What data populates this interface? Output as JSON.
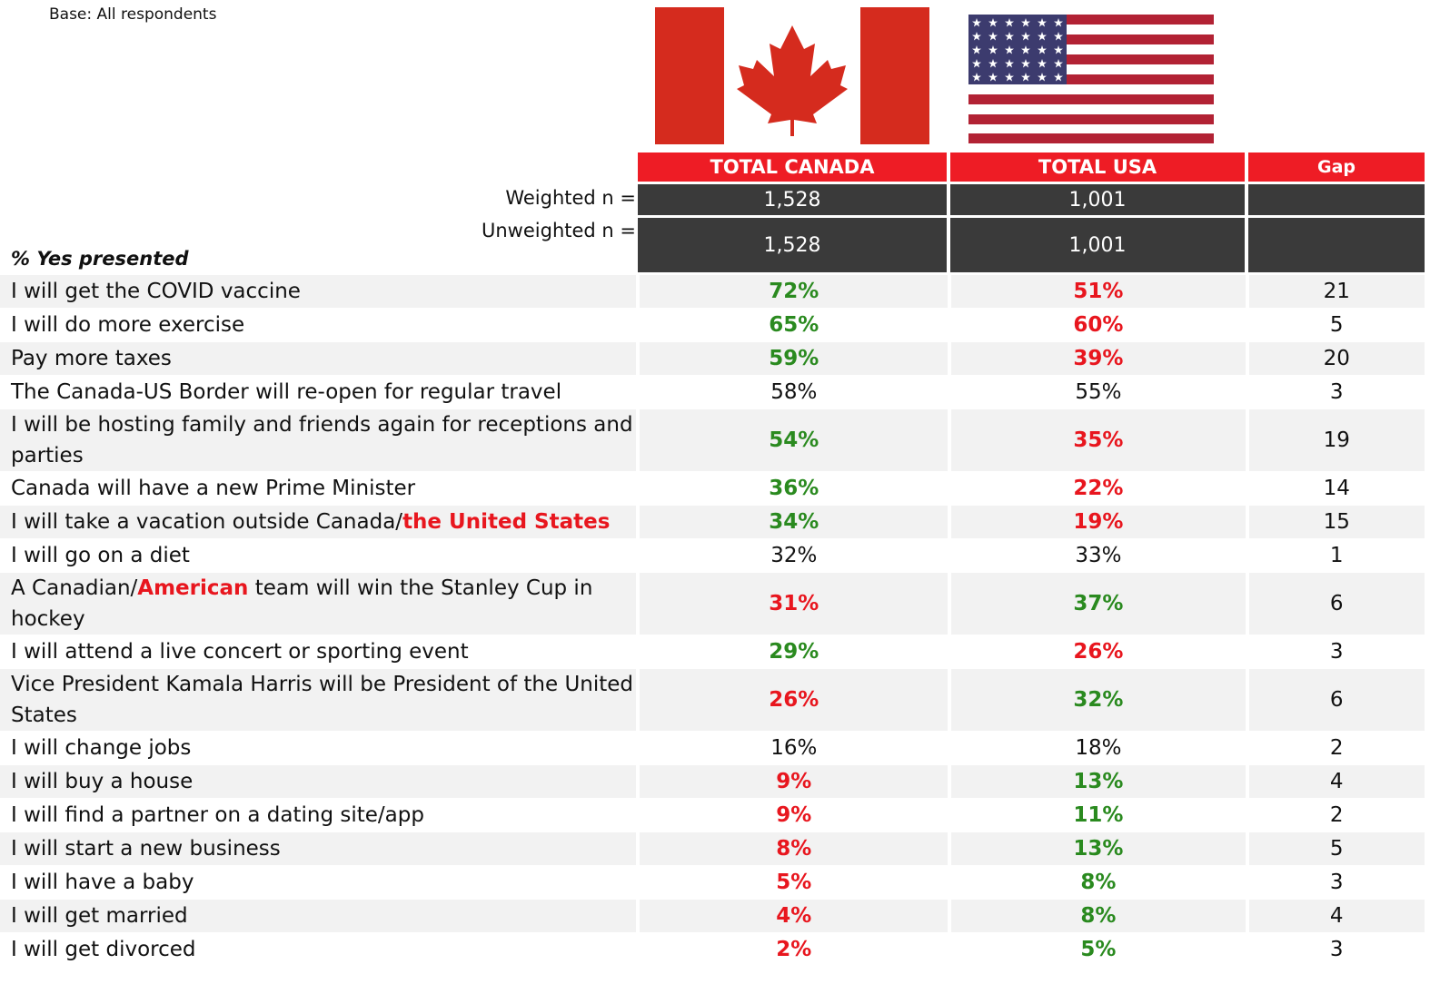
{
  "base": "Base: All respondents",
  "header": {
    "columns": [
      "TOTAL CANADA",
      "TOTAL USA",
      "Gap"
    ],
    "weighted_label": "Weighted n =",
    "weighted": [
      "1,528",
      "1,001"
    ],
    "unweighted_label": "Unweighted n =",
    "unweighted": [
      "1,528",
      "1,001"
    ],
    "section": "% Yes presented"
  },
  "colors": {
    "green": "#2a8a1f",
    "red": "#e8161e",
    "black": "#111111"
  },
  "rows": [
    {
      "label": [
        {
          "text": "I will get the COVID vaccine"
        }
      ],
      "canada": "72%",
      "canada_color": "green",
      "usa": "51%",
      "usa_color": "red",
      "gap": "21"
    },
    {
      "label": [
        {
          "text": "I will do more exercise"
        }
      ],
      "canada": "65%",
      "canada_color": "green",
      "usa": "60%",
      "usa_color": "red",
      "gap": "5"
    },
    {
      "label": [
        {
          "text": "Pay more taxes"
        }
      ],
      "canada": "59%",
      "canada_color": "green",
      "usa": "39%",
      "usa_color": "red",
      "gap": "20"
    },
    {
      "label": [
        {
          "text": "The Canada-US Border will re-open for regular travel"
        }
      ],
      "canada": "58%",
      "canada_color": "black",
      "usa": "55%",
      "usa_color": "black",
      "gap": "3"
    },
    {
      "label": [
        {
          "text": "I will be hosting family and friends again for receptions and parties"
        }
      ],
      "canada": "54%",
      "canada_color": "green",
      "usa": "35%",
      "usa_color": "red",
      "gap": "19"
    },
    {
      "label": [
        {
          "text": "Canada will have a new Prime Minister"
        }
      ],
      "canada": "36%",
      "canada_color": "green",
      "usa": "22%",
      "usa_color": "red",
      "gap": "14"
    },
    {
      "label": [
        {
          "text": "I will take a vacation outside Canada/"
        },
        {
          "text": "the United States",
          "highlight": true
        }
      ],
      "canada": "34%",
      "canada_color": "green",
      "usa": "19%",
      "usa_color": "red",
      "gap": "15"
    },
    {
      "label": [
        {
          "text": "I will go on a diet"
        }
      ],
      "canada": "32%",
      "canada_color": "black",
      "usa": "33%",
      "usa_color": "black",
      "gap": "1"
    },
    {
      "label": [
        {
          "text": "A Canadian/"
        },
        {
          "text": "American",
          "highlight": true
        },
        {
          "text": " team will win the Stanley Cup in hockey"
        }
      ],
      "canada": "31%",
      "canada_color": "red",
      "usa": "37%",
      "usa_color": "green",
      "gap": "6"
    },
    {
      "label": [
        {
          "text": "I will attend a live concert or sporting event"
        }
      ],
      "canada": "29%",
      "canada_color": "green",
      "usa": "26%",
      "usa_color": "red",
      "gap": "3"
    },
    {
      "label": [
        {
          "text": "Vice President Kamala Harris will be President of the United States"
        }
      ],
      "canada": "26%",
      "canada_color": "red",
      "usa": "32%",
      "usa_color": "green",
      "gap": "6"
    },
    {
      "label": [
        {
          "text": "I will change jobs"
        }
      ],
      "canada": "16%",
      "canada_color": "black",
      "usa": "18%",
      "usa_color": "black",
      "gap": "2"
    },
    {
      "label": [
        {
          "text": "I will buy a house"
        }
      ],
      "canada": "9%",
      "canada_color": "red",
      "usa": "13%",
      "usa_color": "green",
      "gap": "4"
    },
    {
      "label": [
        {
          "text": "I will find a partner on a dating site/app"
        }
      ],
      "canada": "9%",
      "canada_color": "red",
      "usa": "11%",
      "usa_color": "green",
      "gap": "2"
    },
    {
      "label": [
        {
          "text": "I will start a new business"
        }
      ],
      "canada": "8%",
      "canada_color": "red",
      "usa": "13%",
      "usa_color": "green",
      "gap": "5"
    },
    {
      "label": [
        {
          "text": "I will have a baby"
        }
      ],
      "canada": "5%",
      "canada_color": "red",
      "usa": "8%",
      "usa_color": "green",
      "gap": "3"
    },
    {
      "label": [
        {
          "text": "I will get married"
        }
      ],
      "canada": "4%",
      "canada_color": "red",
      "usa": "8%",
      "usa_color": "green",
      "gap": "4"
    },
    {
      "label": [
        {
          "text": "I will get divorced"
        }
      ],
      "canada": "2%",
      "canada_color": "red",
      "usa": "5%",
      "usa_color": "green",
      "gap": "3"
    }
  ]
}
